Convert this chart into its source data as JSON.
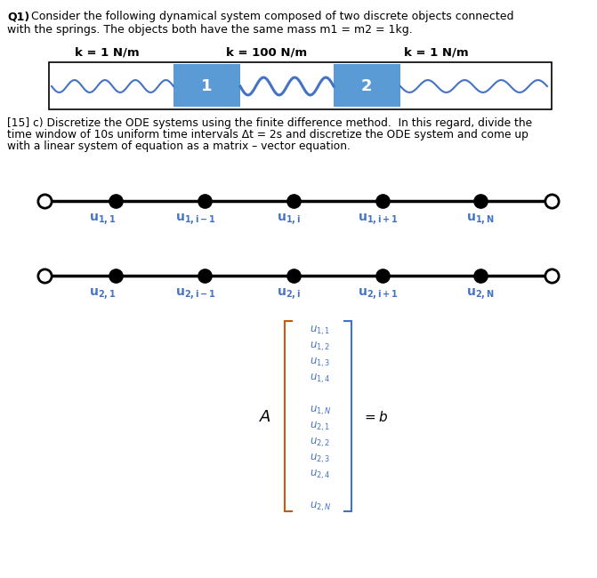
{
  "title_bold": "Q1)",
  "title_text": " Consider the following dynamical system composed of two discrete objects connected\nwith the springs. The objects both have the same mass m1 = m2 = 1kg.",
  "k_labels": [
    "k = 1 N/m",
    "k = 100 N/m",
    "k = 1 N/m"
  ],
  "section_text": "[15] c) Discretize the ODE systems using the finite difference method.  In this regard, divide the\ntime window of 10s uniform time intervals Δt = 2s and discretize the ODE system and come up\nwith a linear system of equation as a matrix – vector equation.",
  "bg_color": "#ffffff",
  "text_color": "#000000",
  "blue_color": "#4472C4",
  "box_fill": "#5B9BD5",
  "spring_color": "#4472C4",
  "border_color": "#000000",
  "bracket_color_left": "#C55A11",
  "bracket_color_right": "#4472C4",
  "vec_entries_top": [
    "u_{1,1}",
    "u_{1,2}",
    "u_{1,3}",
    "u_{1,4}"
  ],
  "vec_entries_mid1": "u_{1,N}",
  "vec_entries_mid2": "u_{2,1}",
  "vec_entries_bot": [
    "u_{2,2}",
    "u_{2,3}",
    "u_{2,4}"
  ],
  "vec_entries_last": "u_{2,N}",
  "node_blue": "#4472C4"
}
